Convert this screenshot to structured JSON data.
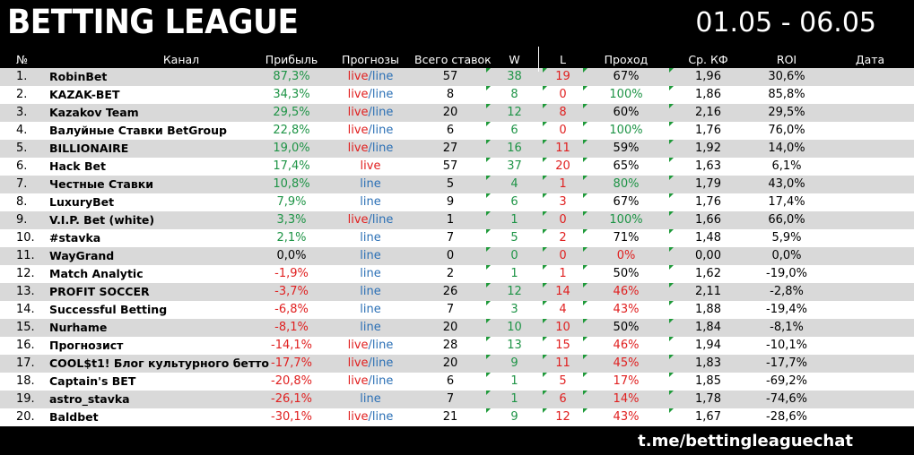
{
  "header": {
    "title": "BETTING LEAGUE",
    "dates": "01.05 - 06.05"
  },
  "columns": {
    "num": "№",
    "channel": "Канал",
    "profit": "Прибыль",
    "forecasts": "Прогнозы",
    "total": "Всего ставок",
    "w": "W",
    "l": "L",
    "pass": "Проход",
    "kf": "Ср. КФ",
    "roi": "ROI",
    "date": "Дата"
  },
  "labels": {
    "live": "live",
    "slash": "/",
    "line": "line"
  },
  "footer": {
    "link": "t.me/bettingleaguechat"
  },
  "colors": {
    "positive": "#1e9446",
    "negative": "#e02020",
    "line": "#2a6fb5",
    "live": "#e02020"
  },
  "rows": [
    {
      "num": "1.",
      "name": "RobinBet",
      "profit": "87,3%",
      "ps": "pos",
      "type": "live/line",
      "total": "57",
      "w": "38",
      "l": "19",
      "pass": "67%",
      "pass_s": "blk",
      "kf": "1,96",
      "roi": "30,6%"
    },
    {
      "num": "2.",
      "name": "KAZAK-BET",
      "profit": "34,3%",
      "ps": "pos",
      "type": "live/line",
      "total": "8",
      "w": "8",
      "l": "0",
      "pass": "100%",
      "pass_s": "pos",
      "kf": "1,86",
      "roi": "85,8%"
    },
    {
      "num": "3.",
      "name": "Kazakov Team",
      "profit": "29,5%",
      "ps": "pos",
      "type": "live/line",
      "total": "20",
      "w": "12",
      "l": "8",
      "pass": "60%",
      "pass_s": "blk",
      "kf": "2,16",
      "roi": "29,5%"
    },
    {
      "num": "4.",
      "name": "Валуйные Ставки BetGroup",
      "profit": "22,8%",
      "ps": "pos",
      "type": "live/line",
      "total": "6",
      "w": "6",
      "l": "0",
      "pass": "100%",
      "pass_s": "pos",
      "kf": "1,76",
      "roi": "76,0%"
    },
    {
      "num": "5.",
      "name": "BILLIONAIRE",
      "profit": "19,0%",
      "ps": "pos",
      "type": "live/line",
      "total": "27",
      "w": "16",
      "l": "11",
      "pass": "59%",
      "pass_s": "blk",
      "kf": "1,92",
      "roi": "14,0%"
    },
    {
      "num": "6.",
      "name": "Hack Bet",
      "profit": "17,4%",
      "ps": "pos",
      "type": "live",
      "total": "57",
      "w": "37",
      "l": "20",
      "pass": "65%",
      "pass_s": "blk",
      "kf": "1,63",
      "roi": "6,1%"
    },
    {
      "num": "7.",
      "name": "Честные Ставки",
      "profit": "10,8%",
      "ps": "pos",
      "type": "line",
      "total": "5",
      "w": "4",
      "l": "1",
      "pass": "80%",
      "pass_s": "pos",
      "kf": "1,79",
      "roi": "43,0%"
    },
    {
      "num": "8.",
      "name": "LuxuryBet",
      "profit": "7,9%",
      "ps": "pos",
      "type": "line",
      "total": "9",
      "w": "6",
      "l": "3",
      "pass": "67%",
      "pass_s": "blk",
      "kf": "1,76",
      "roi": "17,4%"
    },
    {
      "num": "9.",
      "name": "V.I.P. Bet (white)",
      "profit": "3,3%",
      "ps": "pos",
      "type": "live/line",
      "total": "1",
      "w": "1",
      "l": "0",
      "pass": "100%",
      "pass_s": "pos",
      "kf": "1,66",
      "roi": "66,0%"
    },
    {
      "num": "10.",
      "name": "#stavka",
      "profit": "2,1%",
      "ps": "pos",
      "type": "line",
      "total": "7",
      "w": "5",
      "l": "2",
      "pass": "71%",
      "pass_s": "blk",
      "kf": "1,48",
      "roi": "5,9%"
    },
    {
      "num": "11.",
      "name": "WayGrand",
      "profit": "0,0%",
      "ps": "blk",
      "type": "line",
      "total": "0",
      "w": "0",
      "l": "0",
      "pass": "0%",
      "pass_s": "neg",
      "kf": "0,00",
      "roi": "0,0%"
    },
    {
      "num": "12.",
      "name": "Match Analytic",
      "profit": "-1,9%",
      "ps": "neg",
      "type": "line",
      "total": "2",
      "w": "1",
      "l": "1",
      "pass": "50%",
      "pass_s": "blk",
      "kf": "1,62",
      "roi": "-19,0%"
    },
    {
      "num": "13.",
      "name": "PROFIT SOCCER",
      "profit": "-3,7%",
      "ps": "neg",
      "type": "line",
      "total": "26",
      "w": "12",
      "l": "14",
      "pass": "46%",
      "pass_s": "neg",
      "kf": "2,11",
      "roi": "-2,8%"
    },
    {
      "num": "14.",
      "name": "Successful Betting",
      "profit": "-6,8%",
      "ps": "neg",
      "type": "line",
      "total": "7",
      "w": "3",
      "l": "4",
      "pass": "43%",
      "pass_s": "neg",
      "kf": "1,88",
      "roi": "-19,4%"
    },
    {
      "num": "15.",
      "name": "Nurhame",
      "profit": "-8,1%",
      "ps": "neg",
      "type": "line",
      "total": "20",
      "w": "10",
      "l": "10",
      "pass": "50%",
      "pass_s": "blk",
      "kf": "1,84",
      "roi": "-8,1%"
    },
    {
      "num": "16.",
      "name": "Прогнозист",
      "profit": "-14,1%",
      "ps": "neg",
      "type": "live/line",
      "total": "28",
      "w": "13",
      "l": "15",
      "pass": "46%",
      "pass_s": "neg",
      "kf": "1,94",
      "roi": "-10,1%"
    },
    {
      "num": "17.",
      "name": "COOL$t1! Блог культурного бетто",
      "profit": "-17,7%",
      "ps": "neg",
      "type": "live/line",
      "total": "20",
      "w": "9",
      "l": "11",
      "pass": "45%",
      "pass_s": "neg",
      "kf": "1,83",
      "roi": "-17,7%"
    },
    {
      "num": "18.",
      "name": "Captain's BET",
      "profit": "-20,8%",
      "ps": "neg",
      "type": "live/line",
      "total": "6",
      "w": "1",
      "l": "5",
      "pass": "17%",
      "pass_s": "neg",
      "kf": "1,85",
      "roi": "-69,2%"
    },
    {
      "num": "19.",
      "name": "astro_stavka",
      "profit": "-26,1%",
      "ps": "neg",
      "type": "line",
      "total": "7",
      "w": "1",
      "l": "6",
      "pass": "14%",
      "pass_s": "neg",
      "kf": "1,78",
      "roi": "-74,6%"
    },
    {
      "num": "20.",
      "name": "Baldbet",
      "profit": "-30,1%",
      "ps": "neg",
      "type": "live/line",
      "total": "21",
      "w": "9",
      "l": "12",
      "pass": "43%",
      "pass_s": "neg",
      "kf": "1,67",
      "roi": "-28,6%"
    }
  ]
}
